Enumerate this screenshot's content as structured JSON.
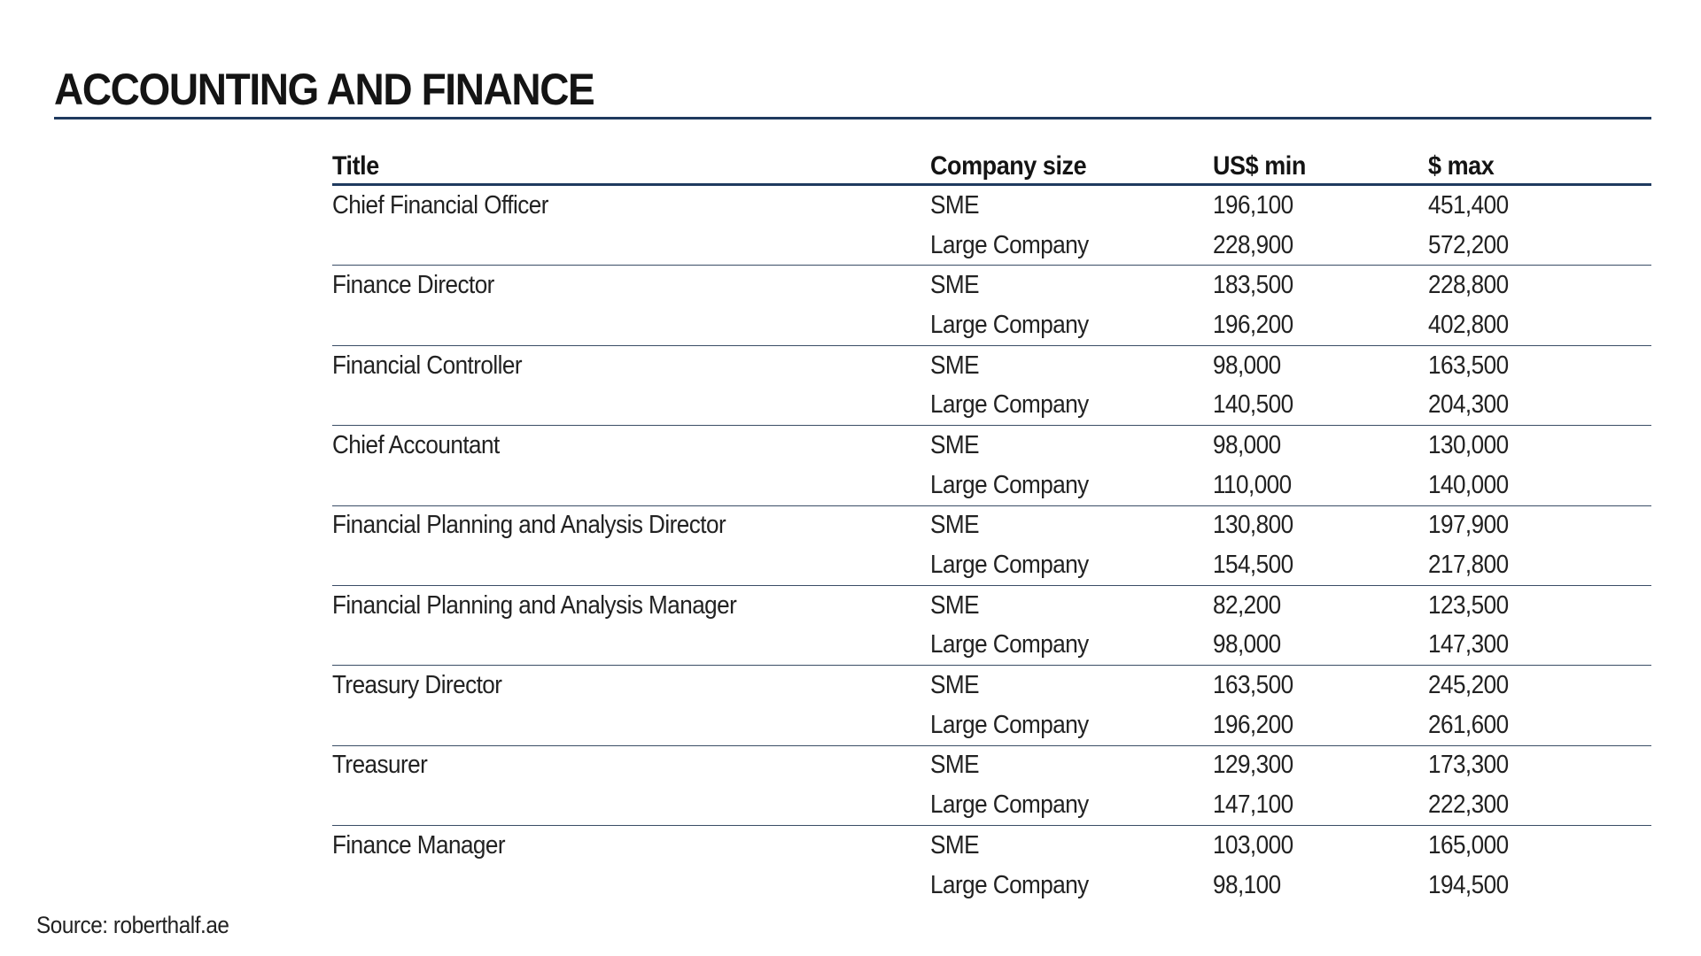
{
  "title": "ACCOUNTING AND FINANCE",
  "table": {
    "headers": {
      "title": "Title",
      "company_size": "Company size",
      "min": "US$ min",
      "max": "$ max"
    },
    "rows": [
      {
        "title": "Chief Financial Officer",
        "size": "SME",
        "min": "196,100",
        "max": "451,400"
      },
      {
        "title": "",
        "size": "Large Company",
        "min": "228,900",
        "max": "572,200"
      },
      {
        "title": "Finance Director",
        "size": "SME",
        "min": "183,500",
        "max": "228,800"
      },
      {
        "title": "",
        "size": "Large Company",
        "min": "196,200",
        "max": "402,800"
      },
      {
        "title": "Financial Controller",
        "size": "SME",
        "min": "98,000",
        "max": "163,500"
      },
      {
        "title": "",
        "size": "Large Company",
        "min": "140,500",
        "max": "204,300"
      },
      {
        "title": "Chief Accountant",
        "size": "SME",
        "min": "98,000",
        "max": "130,000"
      },
      {
        "title": "",
        "size": "Large Company",
        "min": "110,000",
        "max": "140,000"
      },
      {
        "title": "Financial Planning and Analysis Director",
        "size": "SME",
        "min": "130,800",
        "max": "197,900"
      },
      {
        "title": "",
        "size": "Large Company",
        "min": "154,500",
        "max": "217,800"
      },
      {
        "title": "Financial Planning and Analysis Manager",
        "size": "SME",
        "min": "82,200",
        "max": "123,500"
      },
      {
        "title": "",
        "size": "Large Company",
        "min": "98,000",
        "max": "147,300"
      },
      {
        "title": "Treasury Director",
        "size": "SME",
        "min": "163,500",
        "max": "245,200"
      },
      {
        "title": "",
        "size": "Large Company",
        "min": "196,200",
        "max": "261,600"
      },
      {
        "title": "Treasurer",
        "size": "SME",
        "min": "129,300",
        "max": "173,300"
      },
      {
        "title": "",
        "size": "Large Company",
        "min": "147,100",
        "max": "222,300"
      },
      {
        "title": "Finance Manager",
        "size": "SME",
        "min": "103,000",
        "max": "165,000"
      },
      {
        "title": "",
        "size": "Large Company",
        "min": "98,100",
        "max": "194,500"
      }
    ]
  },
  "source": "Source: roberthalf.ae",
  "colors": {
    "rule": "#1f3a5f",
    "text": "#222222"
  }
}
